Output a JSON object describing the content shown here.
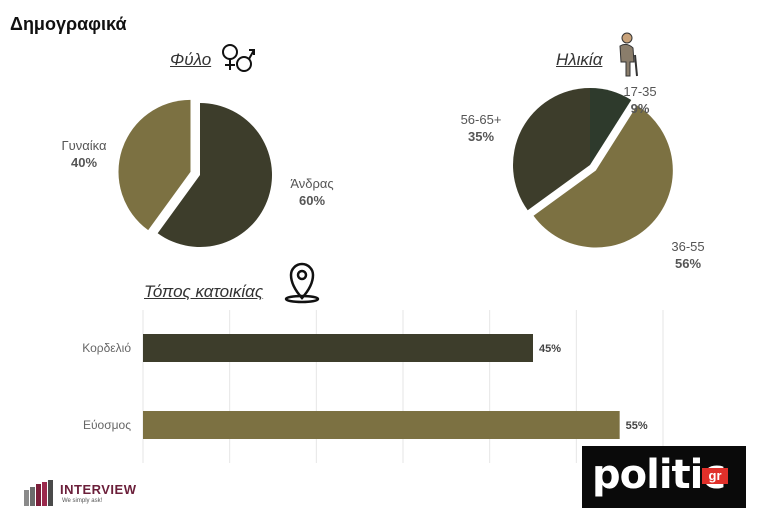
{
  "title": "Δημογραφικά",
  "sections": {
    "gender": "Φύλο",
    "age": "Ηλικία",
    "residence": "Τόπος κατοικίας"
  },
  "colors": {
    "dark": "#3d3d2b",
    "olive": "#7c7142",
    "darkgreen": "#2e3a2c",
    "grid": "#e6e6e6"
  },
  "icons": {
    "gender": "gender-symbols-icon",
    "age": "elderly-person-icon",
    "residence": "map-pin-icon"
  },
  "logos": {
    "interview_name": "INTERVIEW",
    "interview_tagline": "We simply ask!",
    "politic": "politic",
    "politic_gr": "gr"
  },
  "chart_data": [
    {
      "type": "pie",
      "title": "Φύλο",
      "slices": [
        {
          "label": "Άνδρας",
          "value": 60,
          "display": "60%"
        },
        {
          "label": "Γυναίκα",
          "value": 40,
          "display": "40%"
        }
      ]
    },
    {
      "type": "pie",
      "title": "Ηλικία",
      "slices": [
        {
          "label": "17-35",
          "value": 9,
          "display": "9%"
        },
        {
          "label": "36-55",
          "value": 56,
          "display": "56%"
        },
        {
          "label": "56-65+",
          "value": 35,
          "display": "35%"
        }
      ]
    },
    {
      "type": "bar",
      "orientation": "horizontal",
      "title": "Τόπος κατοικίας",
      "categories": [
        "Κορδελιό",
        "Εύοσμος"
      ],
      "values": [
        45,
        55
      ],
      "labels": [
        "45%",
        "55%"
      ],
      "xlim": [
        0,
        60
      ],
      "grid": true
    }
  ]
}
